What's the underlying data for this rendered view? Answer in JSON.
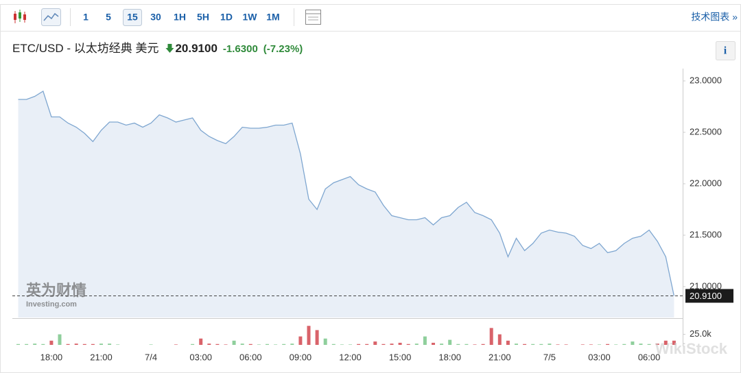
{
  "toolbar": {
    "intervals": [
      "1",
      "5",
      "15",
      "30",
      "1H",
      "5H",
      "1D",
      "1W",
      "1M"
    ],
    "selected": 2,
    "link": "技术图表 »"
  },
  "header": {
    "title": "ETC/USD - 以太坊经典 美元",
    "price": "20.9100",
    "change": "-1.6300",
    "change_pct": "(-7.23%)",
    "info": "i"
  },
  "watermark": {
    "cn": "英为财情",
    "en": "Investing.com",
    "stock": "WikiStock"
  },
  "chart_data": {
    "type": "area",
    "categories": [
      null,
      null,
      null,
      null,
      "18:00",
      null,
      null,
      null,
      null,
      null,
      "21:00",
      null,
      null,
      null,
      null,
      null,
      "7/4",
      null,
      null,
      null,
      null,
      null,
      "03:00",
      null,
      null,
      null,
      null,
      null,
      "06:00",
      null,
      null,
      null,
      null,
      null,
      "09:00",
      null,
      null,
      null,
      null,
      null,
      "12:00",
      null,
      null,
      null,
      null,
      null,
      "15:00",
      null,
      null,
      null,
      null,
      null,
      "18:00",
      null,
      null,
      null,
      null,
      null,
      "21:00",
      null,
      null,
      null,
      null,
      null,
      "7/5",
      null,
      null,
      null,
      null,
      null,
      "03:00",
      null,
      null,
      null,
      null,
      null,
      "06:00",
      null,
      null,
      null
    ],
    "series": [
      {
        "color": "#7ea6d0",
        "fill": "#e9eff7",
        "values": [
          22.82,
          22.82,
          22.85,
          22.9,
          22.65,
          22.65,
          22.59,
          22.55,
          22.49,
          22.41,
          22.52,
          22.6,
          22.6,
          22.57,
          22.59,
          22.55,
          22.59,
          22.67,
          22.64,
          22.6,
          22.62,
          22.64,
          22.52,
          22.46,
          22.42,
          22.39,
          22.46,
          22.55,
          22.54,
          22.54,
          22.55,
          22.57,
          22.57,
          22.59,
          22.29,
          21.85,
          21.75,
          21.95,
          22.01,
          22.04,
          22.07,
          21.99,
          21.95,
          21.92,
          21.79,
          21.69,
          21.67,
          21.65,
          21.65,
          21.67,
          21.6,
          21.67,
          21.69,
          21.77,
          21.82,
          21.72,
          21.69,
          21.65,
          21.52,
          21.29,
          21.47,
          21.35,
          21.42,
          21.52,
          21.55,
          21.53,
          21.52,
          21.49,
          21.4,
          21.37,
          21.42,
          21.33,
          21.35,
          21.42,
          21.47,
          21.49,
          21.55,
          21.44,
          21.29,
          20.91
        ]
      }
    ],
    "ylim": [
      20.7,
      23.12
    ],
    "yticks": [
      {
        "value": 23,
        "label": "23.0000"
      },
      {
        "value": 22.5,
        "label": "22.5000"
      },
      {
        "value": 22,
        "label": "22.0000"
      },
      {
        "value": 21.5,
        "label": "21.5000"
      },
      {
        "value": 21,
        "label": "21.0000"
      }
    ],
    "last_price": {
      "value": 20.91,
      "label": "20.9100"
    },
    "volume": {
      "up_color": "#8fcf9c",
      "down_color": "#d9636a",
      "ylim": [
        0,
        60000
      ],
      "yticks": [
        {
          "value": 25000,
          "label": "25.0k"
        }
      ],
      "values": [
        2000,
        2000,
        3000,
        2000,
        10000,
        25000,
        2000,
        3000,
        2000,
        2000,
        3000,
        3000,
        1000,
        0,
        0,
        0,
        1000,
        0,
        0,
        1000,
        0,
        2000,
        15000,
        3000,
        2000,
        1000,
        10000,
        3000,
        2000,
        1000,
        2000,
        1000,
        2000,
        3000,
        20000,
        45000,
        35000,
        15000,
        2000,
        1000,
        1000,
        2000,
        2000,
        8000,
        2000,
        3000,
        5000,
        2000,
        3000,
        20000,
        5000,
        3000,
        12000,
        2000,
        2000,
        1000,
        2000,
        40000,
        25000,
        10000,
        3000,
        2000,
        2000,
        2000,
        3000,
        1000,
        1000,
        0,
        1000,
        1000,
        1000,
        2000,
        1000,
        2000,
        8000,
        3000,
        2000,
        3000,
        10000,
        10000
      ]
    }
  }
}
